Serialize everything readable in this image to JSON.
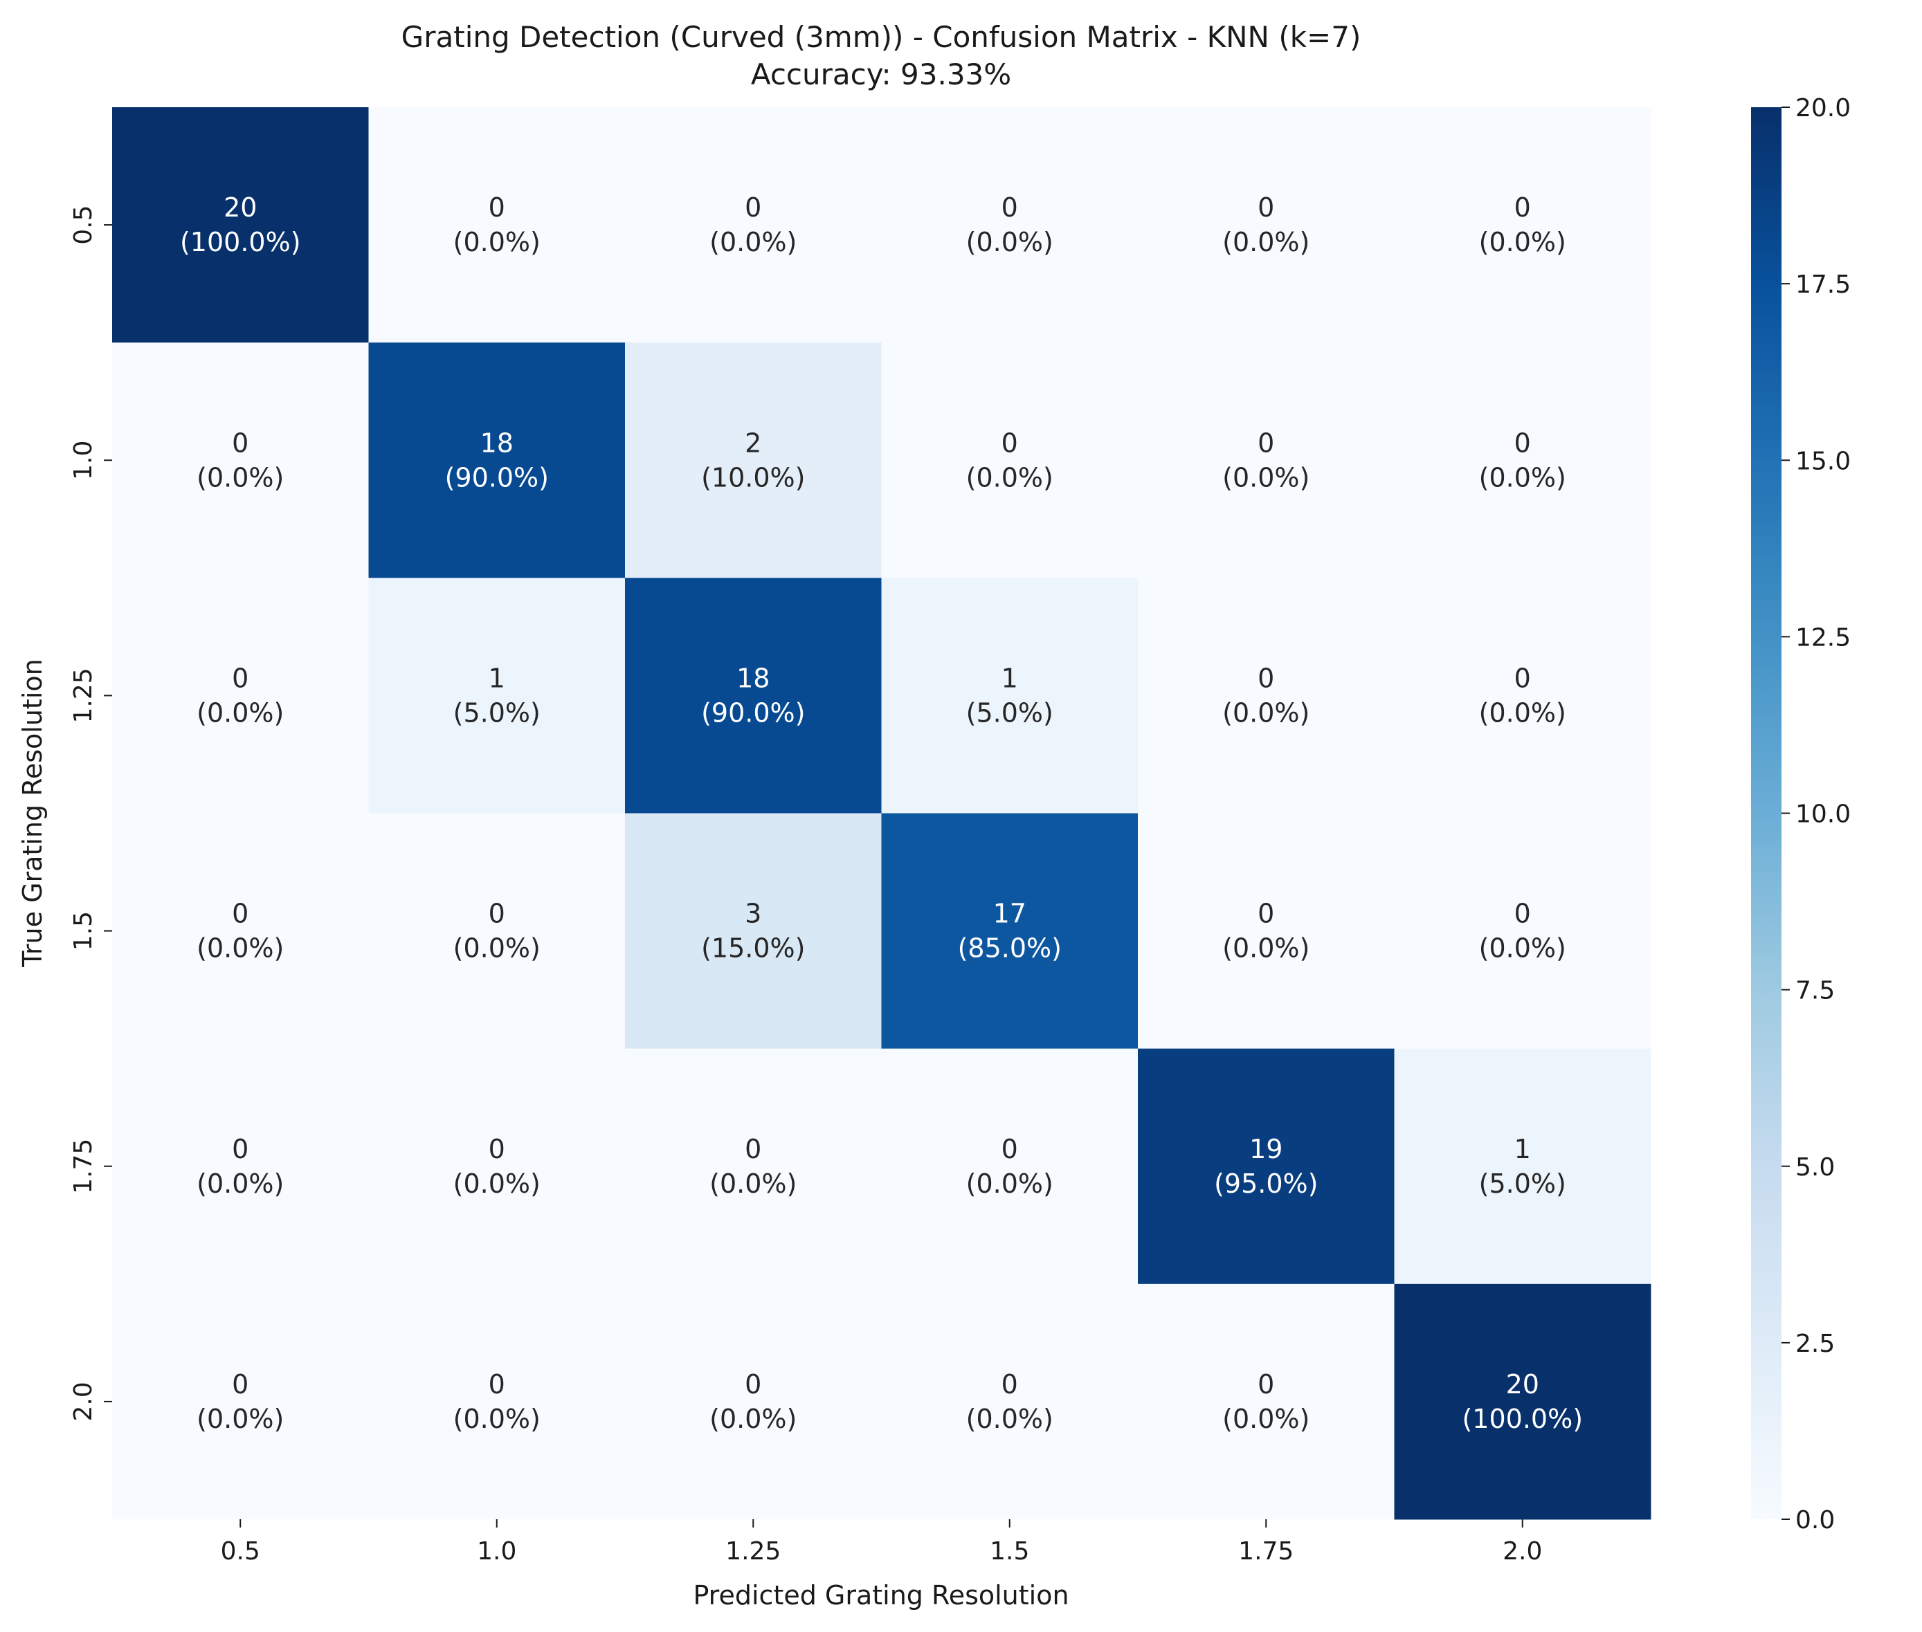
{
  "chart_data": {
    "type": "heatmap",
    "title": "Grating Detection (Curved (3mm)) - Confusion Matrix - KNN (k=7)",
    "subtitle": "Accuracy: 93.33%",
    "xlabel": "Predicted Grating Resolution",
    "ylabel": "True Grating Resolution",
    "x_categories": [
      "0.5",
      "1.0",
      "1.25",
      "1.5",
      "1.75",
      "2.0"
    ],
    "y_categories": [
      "0.5",
      "1.0",
      "1.25",
      "1.5",
      "1.75",
      "2.0"
    ],
    "values": [
      [
        20,
        0,
        0,
        0,
        0,
        0
      ],
      [
        0,
        18,
        2,
        0,
        0,
        0
      ],
      [
        0,
        1,
        18,
        1,
        0,
        0
      ],
      [
        0,
        0,
        3,
        17,
        0,
        0
      ],
      [
        0,
        0,
        0,
        0,
        19,
        1
      ],
      [
        0,
        0,
        0,
        0,
        0,
        20
      ]
    ],
    "percentages": [
      [
        "(100.0%)",
        "(0.0%)",
        "(0.0%)",
        "(0.0%)",
        "(0.0%)",
        "(0.0%)"
      ],
      [
        "(0.0%)",
        "(90.0%)",
        "(10.0%)",
        "(0.0%)",
        "(0.0%)",
        "(0.0%)"
      ],
      [
        "(0.0%)",
        "(5.0%)",
        "(90.0%)",
        "(5.0%)",
        "(0.0%)",
        "(0.0%)"
      ],
      [
        "(0.0%)",
        "(0.0%)",
        "(15.0%)",
        "(85.0%)",
        "(0.0%)",
        "(0.0%)"
      ],
      [
        "(0.0%)",
        "(0.0%)",
        "(0.0%)",
        "(0.0%)",
        "(95.0%)",
        "(5.0%)"
      ],
      [
        "(0.0%)",
        "(0.0%)",
        "(0.0%)",
        "(0.0%)",
        "(0.0%)",
        "(100.0%)"
      ]
    ],
    "colorbar": {
      "min": 0,
      "max": 20,
      "ticks": [
        "0.0",
        "2.5",
        "5.0",
        "7.5",
        "10.0",
        "12.5",
        "15.0",
        "17.5",
        "20.0"
      ],
      "colormap": "Blues"
    }
  }
}
